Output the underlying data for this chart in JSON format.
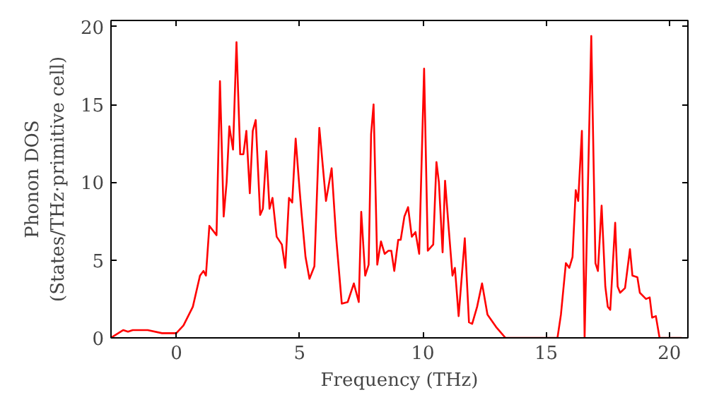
{
  "chart_data": {
    "type": "line",
    "xlabel": "Frequency (THz)",
    "ylabel": "Phonon DOS\n(States/THz·primitive cell)",
    "x": [
      -2.65,
      -2.56,
      -2.15,
      -1.96,
      -1.77,
      -1.16,
      -0.58,
      0.0,
      0.29,
      0.67,
      0.96,
      1.1,
      1.2,
      1.34,
      1.63,
      1.77,
      1.92,
      2.04,
      2.15,
      2.3,
      2.44,
      2.59,
      2.72,
      2.84,
      2.98,
      3.1,
      3.22,
      3.4,
      3.51,
      3.65,
      3.78,
      3.9,
      4.07,
      4.28,
      4.42,
      4.57,
      4.7,
      4.84,
      5.0,
      5.08,
      5.24,
      5.4,
      5.6,
      5.8,
      6.07,
      6.3,
      6.48,
      6.71,
      6.95,
      7.2,
      7.4,
      7.5,
      7.66,
      7.8,
      7.9,
      8.0,
      8.15,
      8.3,
      8.45,
      8.6,
      8.72,
      8.84,
      9.0,
      9.1,
      9.25,
      9.4,
      9.55,
      9.7,
      9.85,
      10.05,
      10.2,
      10.42,
      10.55,
      10.65,
      10.8,
      10.9,
      11.05,
      11.2,
      11.3,
      11.45,
      11.7,
      11.87,
      12.0,
      12.2,
      12.4,
      12.62,
      12.97,
      13.35,
      15.46,
      15.6,
      15.8,
      15.94,
      16.07,
      16.2,
      16.3,
      16.45,
      16.56,
      16.67,
      16.83,
      17.0,
      17.1,
      17.25,
      17.4,
      17.5,
      17.6,
      17.8,
      17.9,
      18.0,
      18.2,
      18.4,
      18.5,
      18.7,
      18.8,
      19.05,
      19.2,
      19.3,
      19.45,
      19.6,
      20.5
    ],
    "series": [
      {
        "color": "#ff0000",
        "values": [
          0.0,
          0.1,
          0.5,
          0.4,
          0.5,
          0.5,
          0.3,
          0.3,
          0.8,
          2.0,
          4.0,
          4.3,
          4.0,
          7.2,
          6.6,
          16.5,
          7.8,
          10.0,
          13.6,
          12.1,
          19.0,
          11.8,
          11.8,
          13.3,
          9.3,
          13.3,
          14.0,
          7.9,
          8.3,
          12.0,
          8.3,
          9.0,
          6.5,
          6.0,
          4.5,
          9.0,
          8.7,
          12.8,
          9.5,
          8.0,
          5.2,
          3.8,
          4.6,
          13.5,
          8.8,
          10.9,
          6.5,
          2.2,
          2.3,
          3.5,
          2.3,
          8.1,
          4.0,
          4.7,
          13.1,
          15.0,
          4.7,
          6.2,
          5.4,
          5.6,
          5.6,
          4.3,
          6.3,
          6.3,
          7.8,
          8.4,
          6.5,
          6.8,
          5.4,
          17.3,
          5.6,
          6.0,
          11.3,
          10.0,
          5.5,
          10.1,
          7.0,
          4.0,
          4.5,
          1.4,
          6.4,
          1.0,
          0.9,
          2.0,
          3.5,
          1.5,
          0.7,
          0.0,
          0.0,
          1.5,
          4.8,
          4.5,
          5.2,
          9.5,
          8.8,
          13.3,
          0.0,
          8.0,
          19.4,
          4.8,
          4.3,
          8.5,
          3.3,
          2.0,
          1.8,
          7.4,
          3.3,
          2.9,
          3.2,
          5.7,
          4.0,
          3.9,
          2.9,
          2.5,
          2.6,
          1.3,
          1.4,
          0.0,
          0.0
        ]
      }
    ],
    "xlim": [
      -2.65,
      20.75
    ],
    "ylim": [
      0,
      20.4
    ],
    "xticks": [
      0,
      5,
      10,
      15,
      20
    ],
    "yticks": [
      0,
      5,
      10,
      15,
      20
    ],
    "grid": false,
    "marker": "none",
    "line_style": "solid"
  }
}
